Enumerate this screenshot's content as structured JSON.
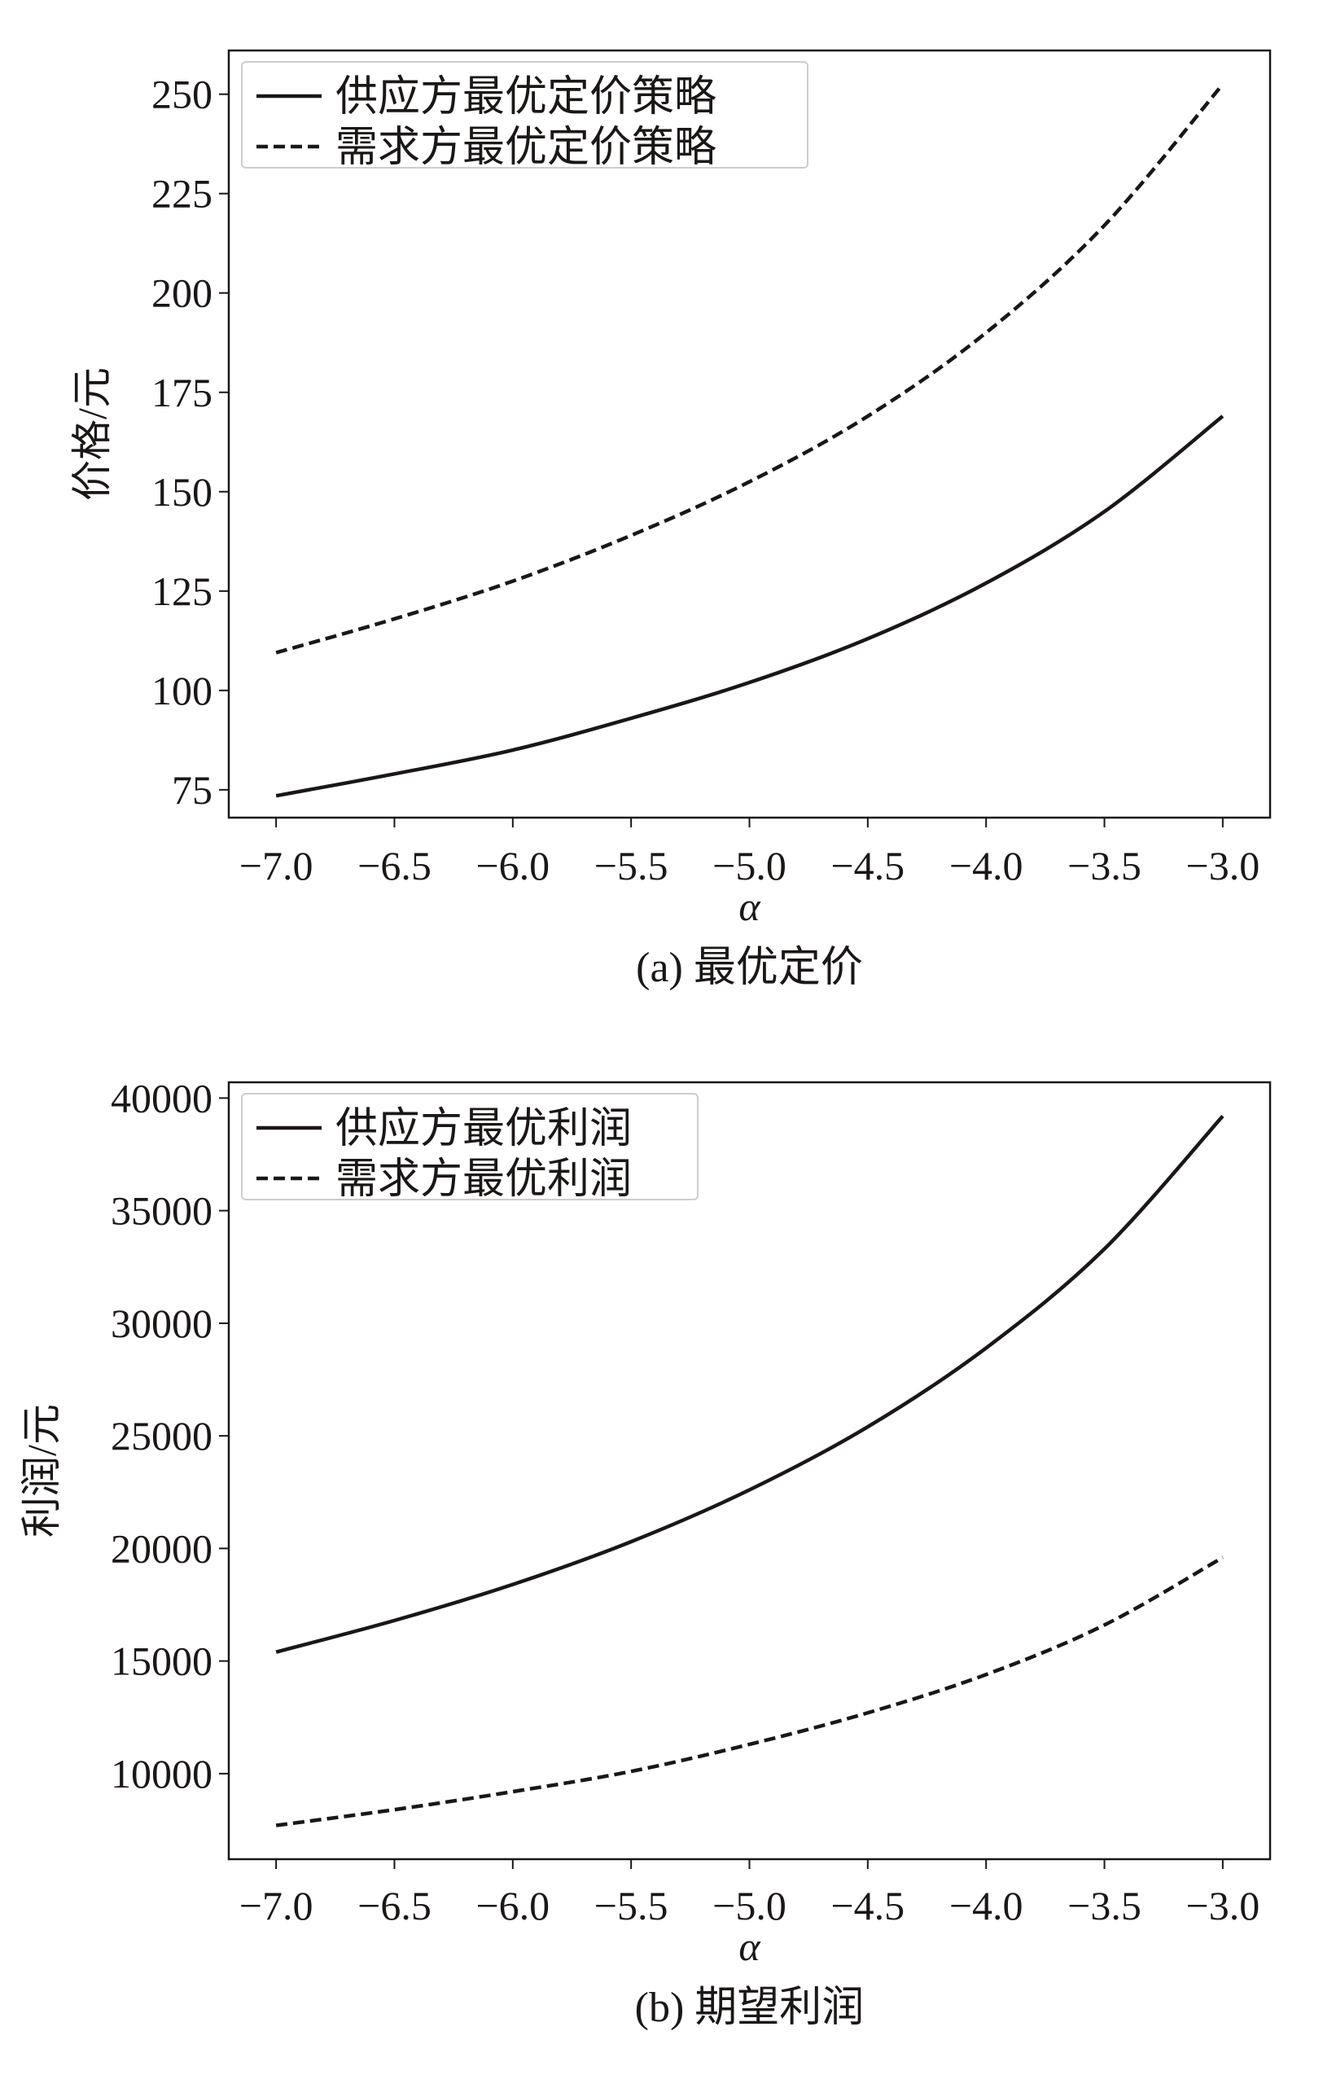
{
  "chart_data": [
    {
      "type": "line",
      "caption": "(a) 最优定价",
      "xlabel": "α",
      "ylabel": "价格/元",
      "xlim": [
        -7.2,
        -2.8
      ],
      "ylim": [
        68,
        261
      ],
      "xticks": [
        -7.0,
        -6.5,
        -6.0,
        -5.5,
        -5.0,
        -4.5,
        -4.0,
        -3.5,
        -3.0
      ],
      "xtick_labels": [
        "−7.0",
        "−6.5",
        "−6.0",
        "−5.5",
        "−5.0",
        "−4.5",
        "−4.0",
        "−3.5",
        "−3.0"
      ],
      "yticks": [
        75,
        100,
        125,
        150,
        175,
        200,
        225,
        250
      ],
      "ytick_labels": [
        "75",
        "100",
        "125",
        "150",
        "175",
        "200",
        "225",
        "250"
      ],
      "legend_position": "top-left",
      "x": [
        -7.0,
        -6.5,
        -6.0,
        -5.5,
        -5.0,
        -4.5,
        -4.0,
        -3.5,
        -3.0
      ],
      "series": [
        {
          "name": "供应方最优定价策略",
          "style": "solid",
          "values": [
            73.5,
            79,
            85,
            93,
            102,
            113,
            127,
            145,
            169
          ]
        },
        {
          "name": "需求方最优定价策略",
          "style": "dashed",
          "values": [
            109.5,
            118,
            127.5,
            139,
            152.5,
            169,
            190,
            217,
            252.5
          ]
        }
      ]
    },
    {
      "type": "line",
      "caption": "(b) 期望利润",
      "xlabel": "α",
      "ylabel": "利润/元",
      "xlim": [
        -7.2,
        -2.8
      ],
      "ylim": [
        6200,
        40700
      ],
      "xticks": [
        -7.0,
        -6.5,
        -6.0,
        -5.5,
        -5.0,
        -4.5,
        -4.0,
        -3.5,
        -3.0
      ],
      "xtick_labels": [
        "−7.0",
        "−6.5",
        "−6.0",
        "−5.5",
        "−5.0",
        "−4.5",
        "−4.0",
        "−3.5",
        "−3.0"
      ],
      "yticks": [
        10000,
        15000,
        20000,
        25000,
        30000,
        35000,
        40000
      ],
      "ytick_labels": [
        "10000",
        "15000",
        "20000",
        "25000",
        "30000",
        "35000",
        "40000"
      ],
      "legend_position": "top-left",
      "x": [
        -7.0,
        -6.5,
        -6.0,
        -5.5,
        -5.0,
        -4.5,
        -4.0,
        -3.5,
        -3.0
      ],
      "series": [
        {
          "name": "供应方最优利润",
          "style": "solid",
          "values": [
            15400,
            16800,
            18400,
            20300,
            22600,
            25400,
            28900,
            33300,
            39200
          ]
        },
        {
          "name": "需求方最优利润",
          "style": "dashed",
          "values": [
            7700,
            8400,
            9200,
            10100,
            11300,
            12700,
            14400,
            16600,
            19600
          ]
        }
      ]
    }
  ],
  "colors": {
    "line": "#1a1716",
    "axis": "#1a1716",
    "legend_border": "#d0cccc"
  }
}
